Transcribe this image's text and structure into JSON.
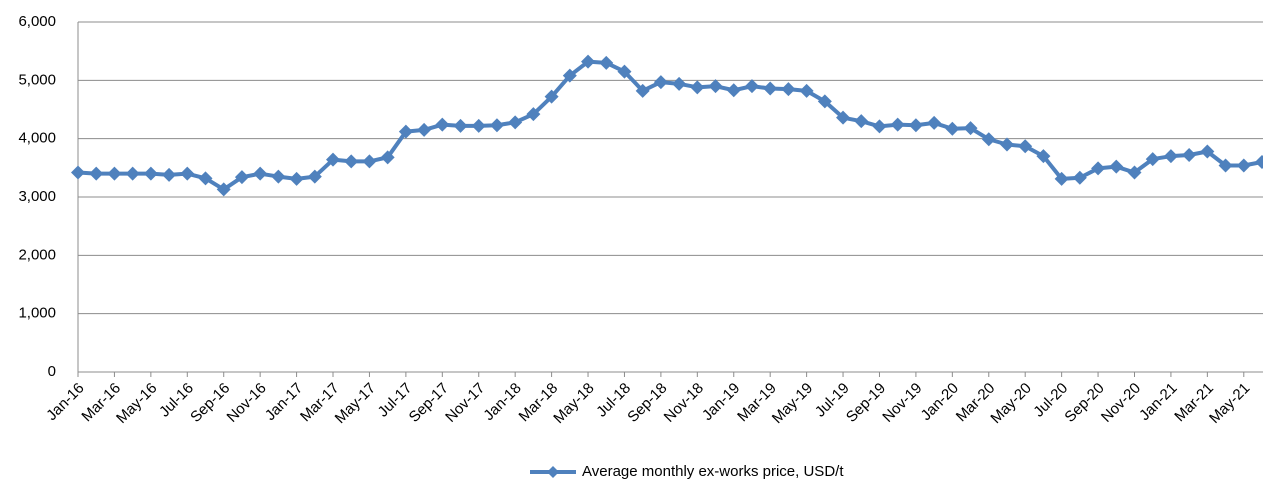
{
  "chart_data": {
    "type": "line",
    "categories": [
      "Jan-16",
      null,
      "Mar-16",
      null,
      "May-16",
      null,
      "Jul-16",
      null,
      "Sep-16",
      null,
      "Nov-16",
      null,
      "Jan-17",
      null,
      "Mar-17",
      null,
      "May-17",
      null,
      "Jul-17",
      null,
      "Sep-17",
      null,
      "Nov-17",
      null,
      "Jan-18",
      null,
      "Mar-18",
      null,
      "May-18",
      null,
      "Jul-18",
      null,
      "Sep-18",
      null,
      "Nov-18",
      null,
      "Jan-19",
      null,
      "Mar-19",
      null,
      "May-19",
      null,
      "Jul-19",
      null,
      "Sep-19",
      null,
      "Nov-19",
      null,
      "Jan-20",
      null,
      "Mar-20",
      null,
      "May-20",
      null,
      "Jul-20",
      null,
      "Sep-20",
      null,
      "Nov-20",
      null,
      "Jan-21",
      null,
      "Mar-21",
      null,
      "May-21",
      null
    ],
    "series": [
      {
        "name": "Average monthly ex-works price, USD/t",
        "color": "#4f81bd",
        "values": [
          3420,
          3400,
          3400,
          3400,
          3400,
          3380,
          3400,
          3320,
          3130,
          3340,
          3400,
          3350,
          3310,
          3350,
          3640,
          3610,
          3610,
          3680,
          4120,
          4150,
          4240,
          4220,
          4220,
          4230,
          4280,
          4420,
          4720,
          5080,
          5320,
          5300,
          5150,
          4820,
          4970,
          4940,
          4880,
          4900,
          4830,
          4900,
          4860,
          4850,
          4820,
          4640,
          4360,
          4300,
          4210,
          4240,
          4230,
          4270,
          4170,
          4180,
          3990,
          3900,
          3870,
          3700,
          3310,
          3330,
          3490,
          3520,
          3420,
          3650,
          3700,
          3720,
          3780,
          3540,
          3540,
          3600
        ]
      }
    ],
    "ylim": [
      0,
      6000
    ],
    "yticks": [
      0,
      {
        "value": 1000,
        "label": "1,000"
      },
      {
        "value": 2000,
        "label": "2,000"
      },
      {
        "value": 3000,
        "label": "3,000"
      },
      {
        "value": 4000,
        "label": "4,000"
      },
      {
        "value": 5000,
        "label": "5,000"
      },
      {
        "value": 6000,
        "label": "6,000"
      }
    ],
    "grid": true,
    "legend": "bottom"
  }
}
